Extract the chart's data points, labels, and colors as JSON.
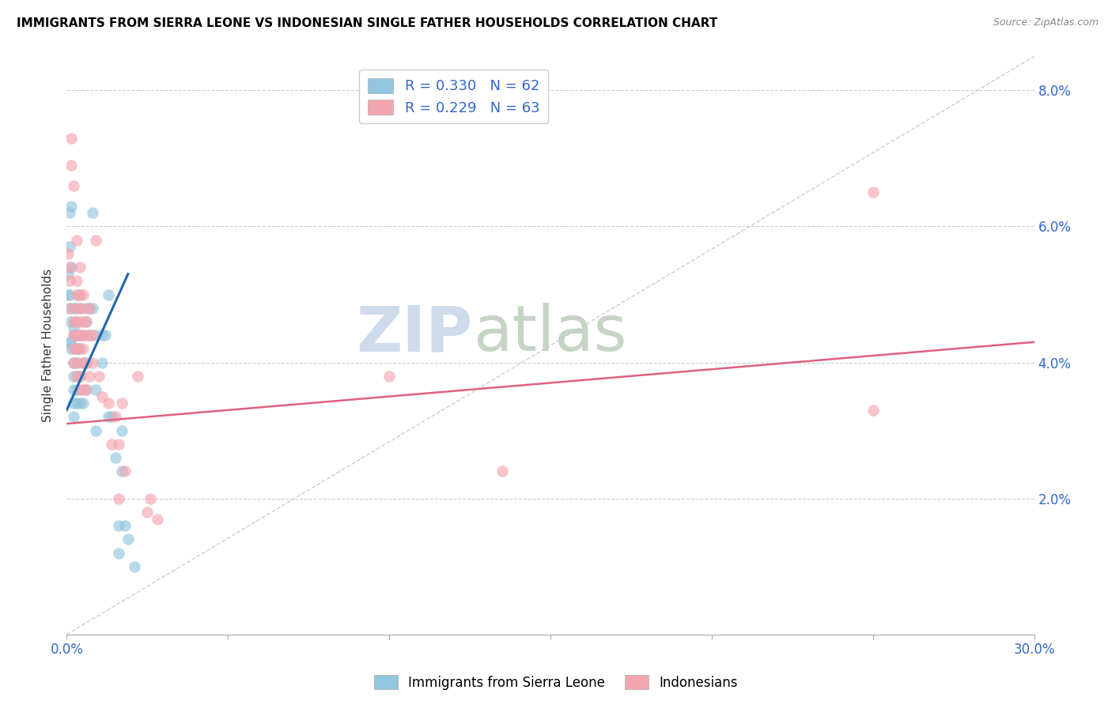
{
  "title": "IMMIGRANTS FROM SIERRA LEONE VS INDONESIAN SINGLE FATHER HOUSEHOLDS CORRELATION CHART",
  "source": "Source: ZipAtlas.com",
  "ylabel": "Single Father Households",
  "xlim": [
    0.0,
    0.3
  ],
  "ylim": [
    -0.005,
    0.088
  ],
  "plot_ylim": [
    0.0,
    0.085
  ],
  "x_ticks": [
    0.0,
    0.05,
    0.1,
    0.15,
    0.2,
    0.25,
    0.3
  ],
  "x_tick_labels": [
    "0.0%",
    "",
    "",
    "",
    "",
    "",
    "30.0%"
  ],
  "y_ticks": [
    0.0,
    0.02,
    0.04,
    0.06,
    0.08
  ],
  "y_tick_labels": [
    "",
    "2.0%",
    "4.0%",
    "6.0%",
    "8.0%"
  ],
  "blue_color": "#92c5de",
  "pink_color": "#f4a6b0",
  "blue_line_color": "#2166ac",
  "pink_line_color": "#e06080",
  "diagonal_color": "#c0c0c0",
  "watermark_zip_color": "#c8d8e8",
  "watermark_atlas_color": "#c0d0c0",
  "blue_points": [
    [
      0.0005,
      0.053
    ],
    [
      0.0005,
      0.05
    ],
    [
      0.0008,
      0.043
    ],
    [
      0.001,
      0.062
    ],
    [
      0.001,
      0.057
    ],
    [
      0.001,
      0.05
    ],
    [
      0.001,
      0.048
    ],
    [
      0.0012,
      0.046
    ],
    [
      0.0012,
      0.043
    ],
    [
      0.0012,
      0.042
    ],
    [
      0.0015,
      0.063
    ],
    [
      0.0015,
      0.054
    ],
    [
      0.002,
      0.048
    ],
    [
      0.002,
      0.045
    ],
    [
      0.002,
      0.044
    ],
    [
      0.002,
      0.042
    ],
    [
      0.002,
      0.04
    ],
    [
      0.002,
      0.038
    ],
    [
      0.002,
      0.036
    ],
    [
      0.002,
      0.034
    ],
    [
      0.002,
      0.032
    ],
    [
      0.0025,
      0.048
    ],
    [
      0.0025,
      0.046
    ],
    [
      0.0025,
      0.044
    ],
    [
      0.003,
      0.042
    ],
    [
      0.003,
      0.04
    ],
    [
      0.003,
      0.038
    ],
    [
      0.003,
      0.036
    ],
    [
      0.003,
      0.034
    ],
    [
      0.0035,
      0.05
    ],
    [
      0.0035,
      0.044
    ],
    [
      0.0035,
      0.042
    ],
    [
      0.004,
      0.038
    ],
    [
      0.004,
      0.034
    ],
    [
      0.0045,
      0.048
    ],
    [
      0.0045,
      0.044
    ],
    [
      0.005,
      0.04
    ],
    [
      0.005,
      0.034
    ],
    [
      0.006,
      0.046
    ],
    [
      0.006,
      0.04
    ],
    [
      0.006,
      0.036
    ],
    [
      0.007,
      0.048
    ],
    [
      0.007,
      0.044
    ],
    [
      0.008,
      0.062
    ],
    [
      0.008,
      0.048
    ],
    [
      0.009,
      0.044
    ],
    [
      0.009,
      0.036
    ],
    [
      0.009,
      0.03
    ],
    [
      0.011,
      0.044
    ],
    [
      0.011,
      0.04
    ],
    [
      0.012,
      0.044
    ],
    [
      0.013,
      0.05
    ],
    [
      0.013,
      0.032
    ],
    [
      0.014,
      0.032
    ],
    [
      0.015,
      0.026
    ],
    [
      0.016,
      0.016
    ],
    [
      0.016,
      0.012
    ],
    [
      0.017,
      0.03
    ],
    [
      0.017,
      0.024
    ],
    [
      0.018,
      0.016
    ],
    [
      0.019,
      0.014
    ],
    [
      0.021,
      0.01
    ]
  ],
  "pink_points": [
    [
      0.0005,
      0.056
    ],
    [
      0.0008,
      0.054
    ],
    [
      0.001,
      0.052
    ],
    [
      0.001,
      0.048
    ],
    [
      0.0015,
      0.073
    ],
    [
      0.0015,
      0.069
    ],
    [
      0.002,
      0.066
    ],
    [
      0.002,
      0.046
    ],
    [
      0.002,
      0.044
    ],
    [
      0.002,
      0.042
    ],
    [
      0.002,
      0.04
    ],
    [
      0.003,
      0.058
    ],
    [
      0.003,
      0.052
    ],
    [
      0.003,
      0.05
    ],
    [
      0.003,
      0.048
    ],
    [
      0.003,
      0.046
    ],
    [
      0.003,
      0.044
    ],
    [
      0.003,
      0.042
    ],
    [
      0.003,
      0.04
    ],
    [
      0.003,
      0.038
    ],
    [
      0.004,
      0.054
    ],
    [
      0.004,
      0.05
    ],
    [
      0.004,
      0.048
    ],
    [
      0.004,
      0.046
    ],
    [
      0.004,
      0.044
    ],
    [
      0.004,
      0.042
    ],
    [
      0.004,
      0.038
    ],
    [
      0.004,
      0.036
    ],
    [
      0.005,
      0.05
    ],
    [
      0.005,
      0.046
    ],
    [
      0.005,
      0.044
    ],
    [
      0.005,
      0.042
    ],
    [
      0.005,
      0.04
    ],
    [
      0.005,
      0.036
    ],
    [
      0.006,
      0.048
    ],
    [
      0.006,
      0.046
    ],
    [
      0.006,
      0.044
    ],
    [
      0.006,
      0.04
    ],
    [
      0.006,
      0.036
    ],
    [
      0.007,
      0.048
    ],
    [
      0.007,
      0.044
    ],
    [
      0.007,
      0.038
    ],
    [
      0.008,
      0.044
    ],
    [
      0.008,
      0.04
    ],
    [
      0.009,
      0.058
    ],
    [
      0.01,
      0.038
    ],
    [
      0.011,
      0.035
    ],
    [
      0.013,
      0.034
    ],
    [
      0.014,
      0.028
    ],
    [
      0.015,
      0.032
    ],
    [
      0.016,
      0.028
    ],
    [
      0.016,
      0.02
    ],
    [
      0.017,
      0.034
    ],
    [
      0.018,
      0.024
    ],
    [
      0.022,
      0.038
    ],
    [
      0.025,
      0.018
    ],
    [
      0.026,
      0.02
    ],
    [
      0.028,
      0.017
    ],
    [
      0.1,
      0.038
    ],
    [
      0.135,
      0.024
    ],
    [
      0.25,
      0.065
    ],
    [
      0.25,
      0.033
    ]
  ],
  "blue_line": {
    "x0": 0.0,
    "y0": 0.033,
    "x1": 0.019,
    "y1": 0.053
  },
  "pink_line": {
    "x0": 0.0,
    "y0": 0.031,
    "x1": 0.3,
    "y1": 0.043
  },
  "diag_line": {
    "x0": 0.0,
    "y0": 0.0,
    "x1": 0.3,
    "y1": 0.085
  }
}
